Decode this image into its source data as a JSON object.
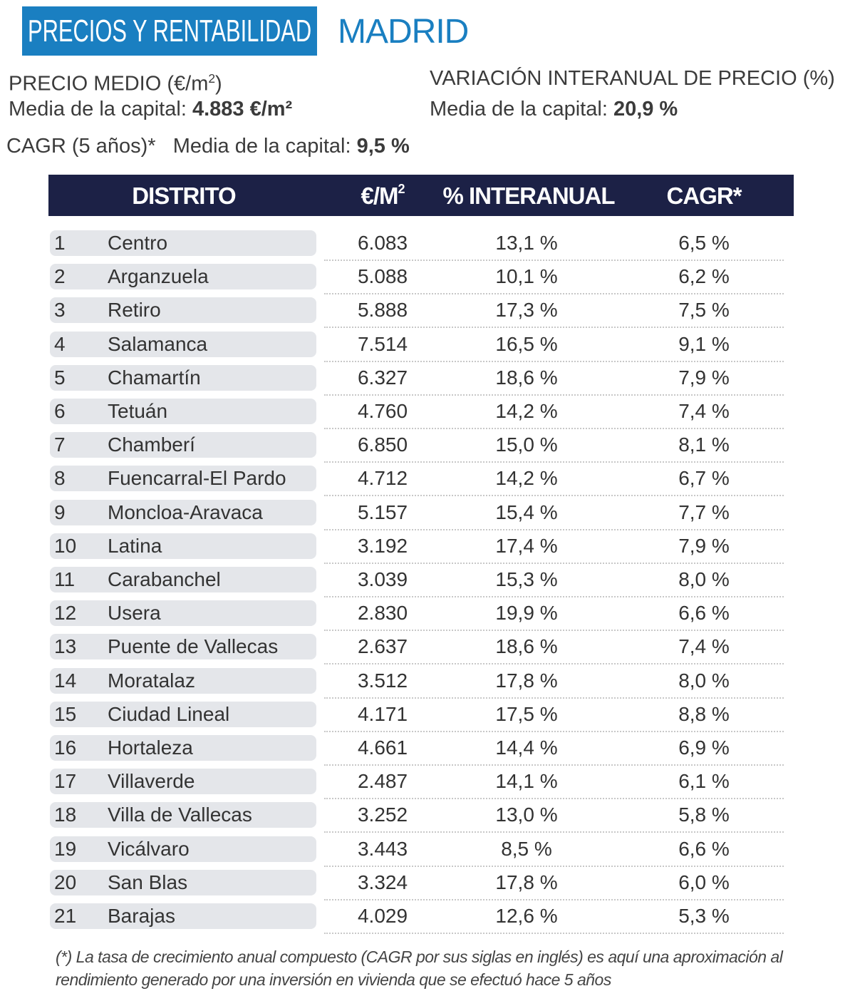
{
  "header": {
    "title": "PRECIOS Y RENTABILIDAD",
    "city": "MADRID"
  },
  "summary": {
    "price_label": "PRECIO MEDIO (€/m",
    "price_label_sup": "2",
    "price_label_end": ")",
    "price_avg_prefix": "Media de la capital: ",
    "price_avg_value": "4.883 €/m²",
    "variation_label": "VARIACIÓN INTERANUAL DE PRECIO (%)",
    "variation_avg_prefix": "Media de la capital: ",
    "variation_avg_value": "20,9 %",
    "cagr_label": "CAGR (5 años)*",
    "cagr_avg_prefix": "Media de la capital: ",
    "cagr_avg_value": "9,5 %"
  },
  "colors": {
    "brand_blue": "#1a7fc1",
    "header_navy": "#1c2146",
    "row_pill": "#e4e6ea"
  },
  "table": {
    "columns": {
      "district": "DISTRITO",
      "price": "€/M",
      "price_sup": "2",
      "interannual": "% INTERANUAL",
      "cagr": "CAGR*"
    },
    "rows": [
      {
        "n": "1",
        "name": "Centro",
        "price": "6.083",
        "interannual": "13,1 %",
        "cagr": "6,5 %"
      },
      {
        "n": "2",
        "name": "Arganzuela",
        "price": "5.088",
        "interannual": "10,1 %",
        "cagr": "6,2 %"
      },
      {
        "n": "3",
        "name": "Retiro",
        "price": "5.888",
        "interannual": "17,3 %",
        "cagr": "7,5 %"
      },
      {
        "n": "4",
        "name": "Salamanca",
        "price": "7.514",
        "interannual": "16,5 %",
        "cagr": "9,1 %"
      },
      {
        "n": "5",
        "name": "Chamartín",
        "price": "6.327",
        "interannual": "18,6 %",
        "cagr": "7,9 %"
      },
      {
        "n": "6",
        "name": "Tetuán",
        "price": "4.760",
        "interannual": "14,2 %",
        "cagr": "7,4 %"
      },
      {
        "n": "7",
        "name": "Chamberí",
        "price": "6.850",
        "interannual": "15,0 %",
        "cagr": "8,1 %"
      },
      {
        "n": "8",
        "name": "Fuencarral-El Pardo",
        "price": "4.712",
        "interannual": "14,2 %",
        "cagr": "6,7 %"
      },
      {
        "n": "9",
        "name": "Moncloa-Aravaca",
        "price": "5.157",
        "interannual": "15,4 %",
        "cagr": "7,7 %"
      },
      {
        "n": "10",
        "name": "Latina",
        "price": "3.192",
        "interannual": "17,4 %",
        "cagr": "7,9 %"
      },
      {
        "n": "11",
        "name": "Carabanchel",
        "price": "3.039",
        "interannual": "15,3 %",
        "cagr": "8,0 %"
      },
      {
        "n": "12",
        "name": "Usera",
        "price": "2.830",
        "interannual": "19,9 %",
        "cagr": "6,6 %"
      },
      {
        "n": "13",
        "name": "Puente de Vallecas",
        "price": "2.637",
        "interannual": "18,6 %",
        "cagr": "7,4 %"
      },
      {
        "n": "14",
        "name": "Moratalaz",
        "price": "3.512",
        "interannual": "17,8 %",
        "cagr": "8,0 %"
      },
      {
        "n": "15",
        "name": "Ciudad Lineal",
        "price": "4.171",
        "interannual": "17,5 %",
        "cagr": "8,8 %"
      },
      {
        "n": "16",
        "name": "Hortaleza",
        "price": "4.661",
        "interannual": "14,4 %",
        "cagr": "6,9 %"
      },
      {
        "n": "17",
        "name": "Villaverde",
        "price": "2.487",
        "interannual": "14,1 %",
        "cagr": "6,1 %"
      },
      {
        "n": "18",
        "name": "Villa de Vallecas",
        "price": "3.252",
        "interannual": "13,0 %",
        "cagr": "5,8 %"
      },
      {
        "n": "19",
        "name": "Vicálvaro",
        "price": "3.443",
        "interannual": "8,5 %",
        "cagr": "6,6 %"
      },
      {
        "n": "20",
        "name": "San Blas",
        "price": "3.324",
        "interannual": "17,8 %",
        "cagr": "6,0 %"
      },
      {
        "n": "21",
        "name": "Barajas",
        "price": "4.029",
        "interannual": "12,6 %",
        "cagr": "5,3 %"
      }
    ]
  },
  "footnote": "(*) La tasa de crecimiento anual compuesto (CAGR por sus siglas en inglés) es aquí una aproximación al rendimiento generado por una inversión en vivienda que se efectuó hace 5 años"
}
